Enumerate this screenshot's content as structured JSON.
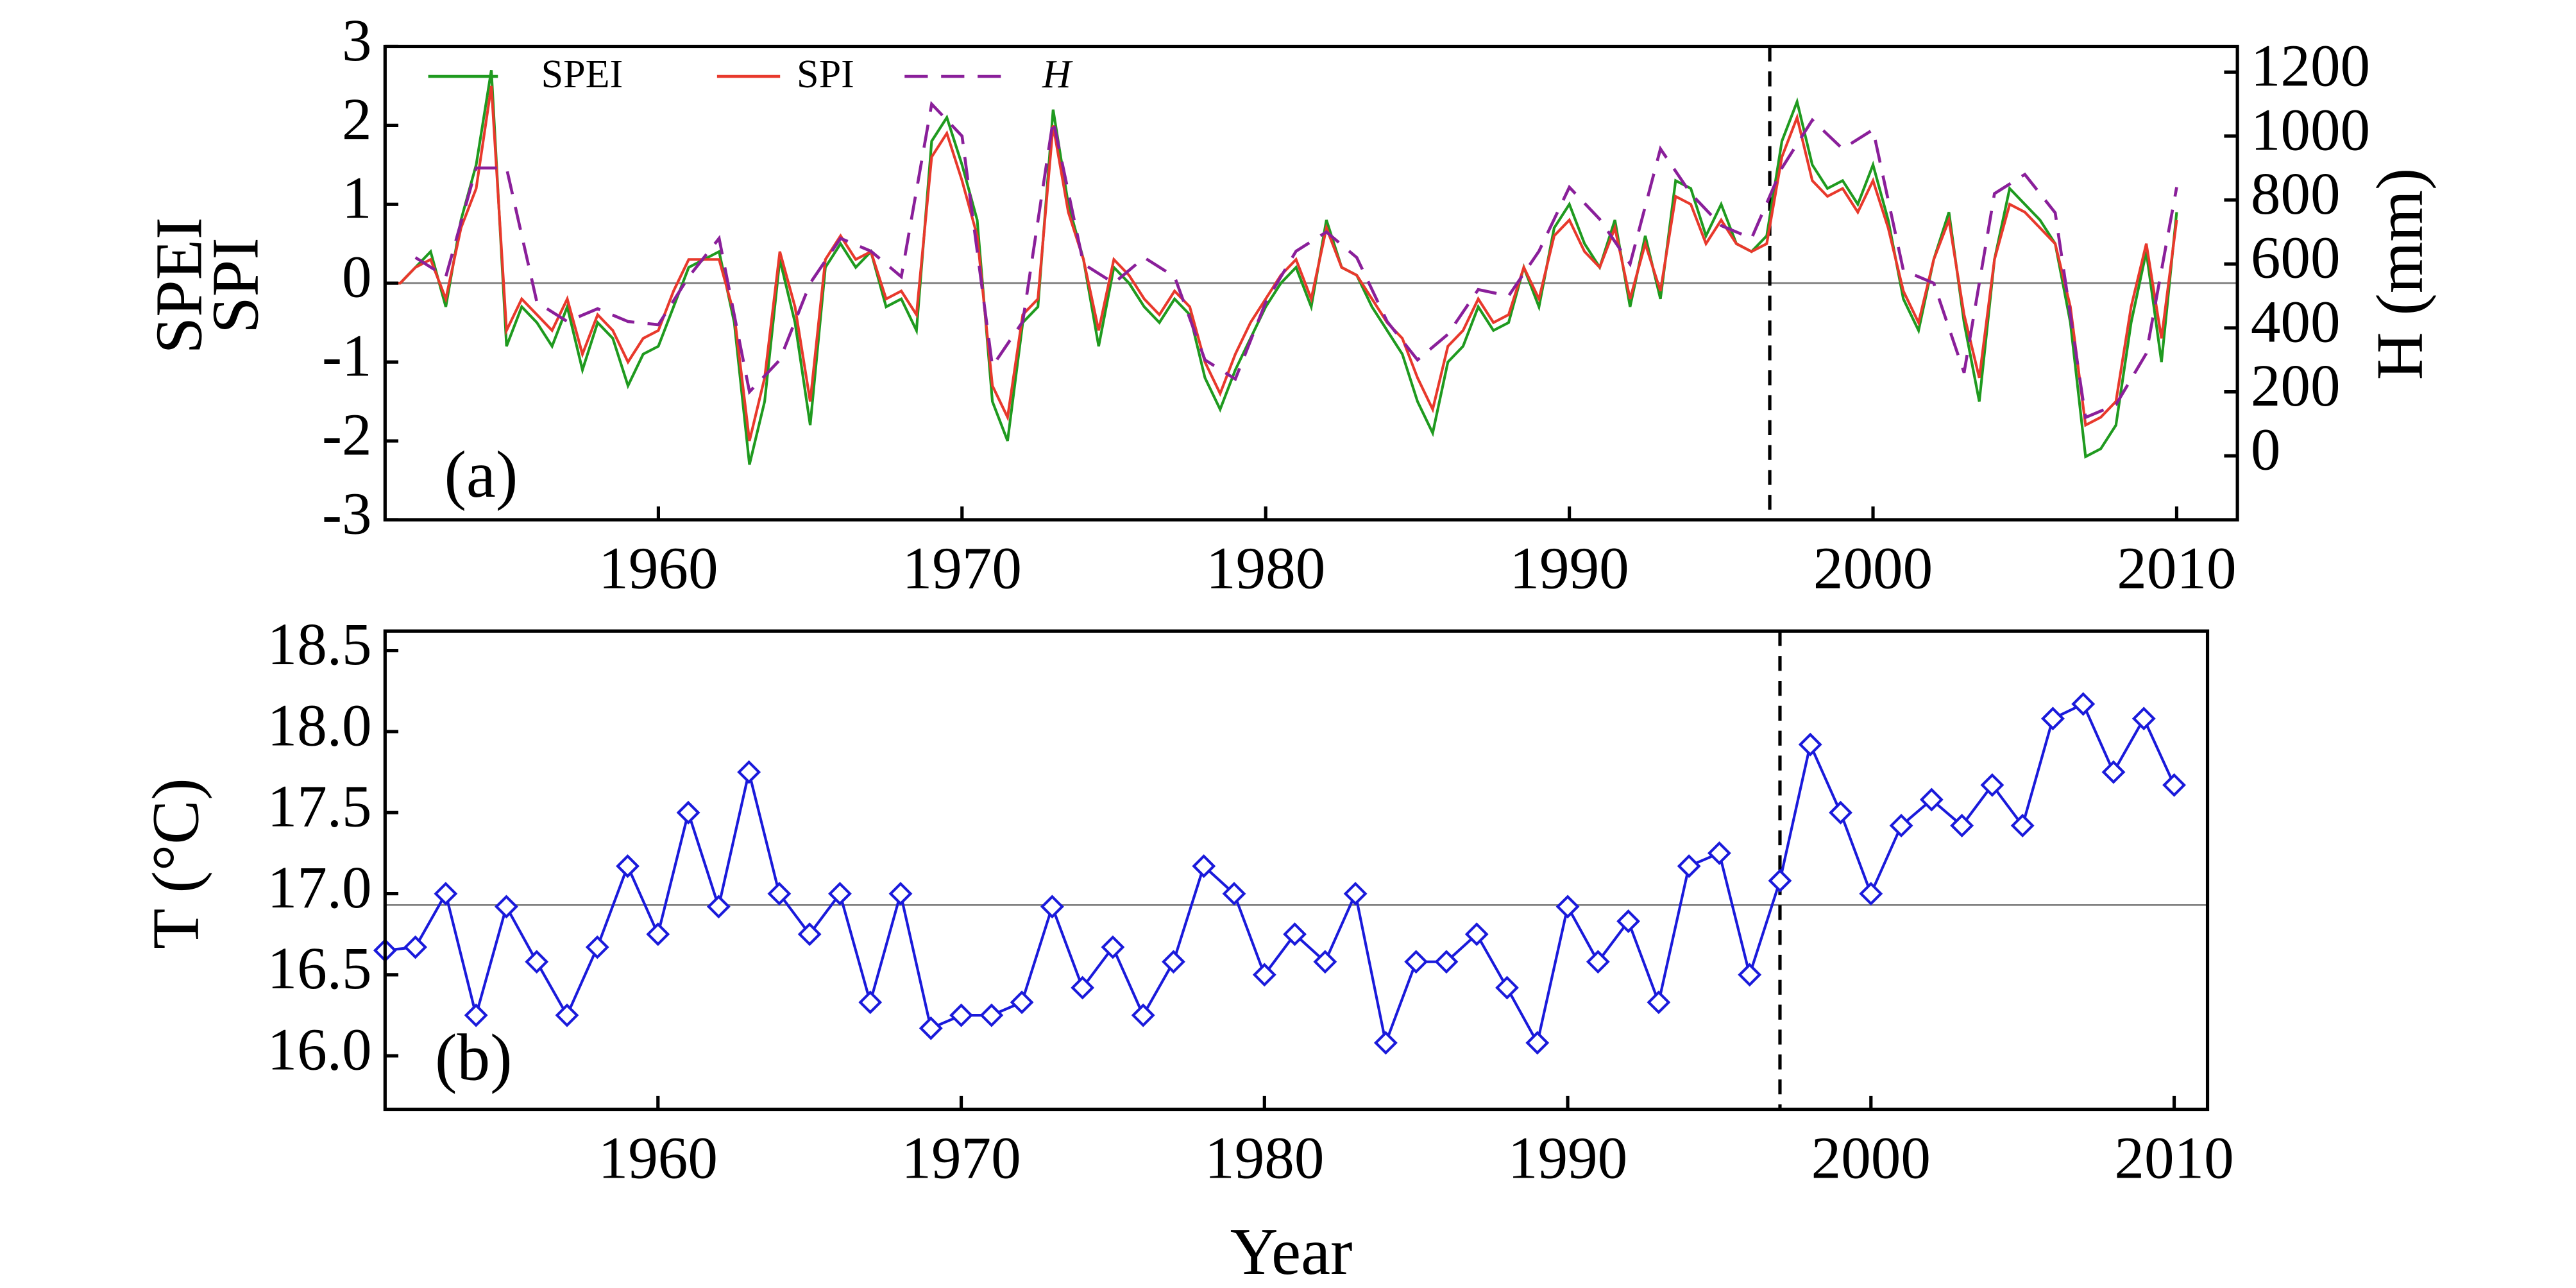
{
  "chart_data": [
    {
      "type": "line",
      "panel_label": "(a)",
      "ylabel": [
        "SPEI",
        "SPI"
      ],
      "y2label": "H (mm)",
      "xlim": [
        1951,
        2012
      ],
      "xticks": [
        1960,
        1970,
        1980,
        1990,
        2000,
        2010
      ],
      "ylim": [
        -3,
        3
      ],
      "yticks": [
        -3,
        -2,
        -1,
        0,
        1,
        2,
        3
      ],
      "y2lim": [
        -200,
        1280
      ],
      "y2ticks": [
        0,
        200,
        400,
        600,
        800,
        1000,
        1200
      ],
      "hline": 0,
      "vline": 1996.6,
      "legend": "upper left",
      "x": [
        1951,
        1951.5,
        1952,
        1952.5,
        1953,
        1953.5,
        1954,
        1954.5,
        1955,
        1955.5,
        1956,
        1956.5,
        1957,
        1957.5,
        1958,
        1958.5,
        1959,
        1959.5,
        1960,
        1960.5,
        1961,
        1961.5,
        1962,
        1962.5,
        1963,
        1963.5,
        1964,
        1964.5,
        1965,
        1965.5,
        1966,
        1966.5,
        1967,
        1967.5,
        1968,
        1968.5,
        1969,
        1969.5,
        1970,
        1970.5,
        1971,
        1971.5,
        1972,
        1972.5,
        1973,
        1973.5,
        1974,
        1974.5,
        1975,
        1975.5,
        1976,
        1976.5,
        1977,
        1977.5,
        1978,
        1978.5,
        1979,
        1979.5,
        1980,
        1980.5,
        1981,
        1981.5,
        1982,
        1982.5,
        1983,
        1983.5,
        1984,
        1984.5,
        1985,
        1985.5,
        1986,
        1986.5,
        1987,
        1987.5,
        1988,
        1988.5,
        1989,
        1989.5,
        1990,
        1990.5,
        1991,
        1991.5,
        1992,
        1992.5,
        1993,
        1993.5,
        1994,
        1994.5,
        1995,
        1995.5,
        1996,
        1996.5,
        1997,
        1997.5,
        1998,
        1998.5,
        1999,
        1999.5,
        2000,
        2000.5,
        2001,
        2001.5,
        2002,
        2002.5,
        2003,
        2003.5,
        2004,
        2004.5,
        2005,
        2005.5,
        2006,
        2006.5,
        2007,
        2007.5,
        2008,
        2008.5,
        2009,
        2009.5,
        2010
      ],
      "series": [
        {
          "name": "SPEI",
          "color": "#1f9a1f",
          "values": [
            0,
            0,
            0.2,
            0.4,
            -0.3,
            0.8,
            1.5,
            2.7,
            -0.8,
            -0.3,
            -0.5,
            -0.8,
            -0.3,
            -1.1,
            -0.5,
            -0.7,
            -1.3,
            -0.9,
            -0.8,
            -0.3,
            0.2,
            0.3,
            0.4,
            -0.5,
            -2.3,
            -1.5,
            0.3,
            -0.5,
            -1.8,
            0.2,
            0.5,
            0.2,
            0.4,
            -0.3,
            -0.2,
            -0.6,
            1.8,
            2.1,
            1.5,
            0.8,
            -1.5,
            -2.0,
            -0.5,
            -0.3,
            2.2,
            1.0,
            0.3,
            -0.8,
            0.2,
            0.0,
            -0.3,
            -0.5,
            -0.2,
            -0.4,
            -1.2,
            -1.6,
            -1.1,
            -0.7,
            -0.3,
            0.0,
            0.2,
            -0.3,
            0.8,
            0.2,
            0.1,
            -0.3,
            -0.6,
            -0.9,
            -1.5,
            -1.9,
            -1.0,
            -0.8,
            -0.3,
            -0.6,
            -0.5,
            0.2,
            -0.3,
            0.7,
            1.0,
            0.5,
            0.2,
            0.8,
            -0.3,
            0.6,
            -0.2,
            1.3,
            1.2,
            0.6,
            1.0,
            0.5,
            0.4,
            0.6,
            1.8,
            2.3,
            1.5,
            1.2,
            1.3,
            1.0,
            1.5,
            0.8,
            -0.2,
            -0.6,
            0.3,
            0.9,
            -0.5,
            -1.5,
            0.3,
            1.2,
            1.0,
            0.8,
            0.5,
            -0.5,
            -2.2,
            -2.1,
            -1.8,
            -0.5,
            0.4,
            -1.0,
            0.9
          ]
        },
        {
          "name": "SPI",
          "color": "#e8392c",
          "values": [
            0,
            0,
            0.2,
            0.3,
            -0.2,
            0.7,
            1.2,
            2.5,
            -0.6,
            -0.2,
            -0.4,
            -0.6,
            -0.2,
            -0.9,
            -0.4,
            -0.6,
            -1.0,
            -0.7,
            -0.6,
            -0.1,
            0.3,
            0.3,
            0.3,
            -0.4,
            -2.0,
            -1.2,
            0.4,
            -0.3,
            -1.5,
            0.3,
            0.6,
            0.3,
            0.4,
            -0.2,
            -0.1,
            -0.4,
            1.6,
            1.9,
            1.3,
            0.6,
            -1.3,
            -1.7,
            -0.4,
            -0.2,
            2.0,
            0.9,
            0.3,
            -0.6,
            0.3,
            0.1,
            -0.2,
            -0.4,
            -0.1,
            -0.3,
            -1.0,
            -1.4,
            -0.9,
            -0.5,
            -0.2,
            0.1,
            0.3,
            -0.2,
            0.7,
            0.2,
            0.1,
            -0.2,
            -0.5,
            -0.7,
            -1.2,
            -1.6,
            -0.8,
            -0.6,
            -0.2,
            -0.5,
            -0.4,
            0.2,
            -0.2,
            0.6,
            0.8,
            0.4,
            0.2,
            0.7,
            -0.2,
            0.5,
            -0.1,
            1.1,
            1.0,
            0.5,
            0.8,
            0.5,
            0.4,
            0.5,
            1.6,
            2.1,
            1.3,
            1.1,
            1.2,
            0.9,
            1.3,
            0.7,
            -0.1,
            -0.5,
            0.3,
            0.8,
            -0.4,
            -1.2,
            0.3,
            1.0,
            0.9,
            0.7,
            0.5,
            -0.3,
            -1.8,
            -1.7,
            -1.5,
            -0.3,
            0.5,
            -0.7,
            0.8
          ]
        },
        {
          "name": "H",
          "color": "#8a1f9a",
          "axis": "y2",
          "dash": true,
          "x": [
            1952,
            1953,
            1954,
            1955,
            1956,
            1957,
            1958,
            1959,
            1960,
            1961,
            1962,
            1963,
            1964,
            1965,
            1966,
            1967,
            1968,
            1969,
            1970,
            1971,
            1972,
            1973,
            1974,
            1975,
            1976,
            1977,
            1978,
            1979,
            1980,
            1981,
            1982,
            1983,
            1984,
            1985,
            1986,
            1987,
            1988,
            1989,
            1990,
            1991,
            1992,
            1993,
            1994,
            1995,
            1996,
            1997,
            1998,
            1999,
            2000,
            2001,
            2002,
            2003,
            2004,
            2005,
            2006,
            2007,
            2008,
            2009,
            2010
          ],
          "values": [
            620,
            560,
            900,
            900,
            480,
            420,
            460,
            420,
            410,
            560,
            680,
            200,
            300,
            540,
            680,
            640,
            560,
            1100,
            1000,
            280,
            420,
            1050,
            600,
            540,
            620,
            560,
            300,
            240,
            480,
            640,
            700,
            620,
            420,
            300,
            380,
            520,
            500,
            640,
            840,
            740,
            600,
            960,
            820,
            720,
            680,
            900,
            1050,
            960,
            1020,
            580,
            540,
            260,
            820,
            880,
            760,
            120,
            160,
            320,
            840
          ]
        }
      ]
    },
    {
      "type": "line",
      "panel_label": "(b)",
      "ylabel": "T (°C)",
      "xlabel": "Year",
      "marker": "diamond",
      "xlim": [
        1951,
        2011.1
      ],
      "xticks": [
        1960,
        1970,
        1980,
        1990,
        2000,
        2010
      ],
      "ylim": [
        15.67,
        18.62
      ],
      "yticks": [
        {
          "value": 16,
          "label": "16.0"
        },
        16.5,
        {
          "value": 17,
          "label": "17.0"
        },
        17.5,
        {
          "value": 18,
          "label": "18.0"
        },
        18.5
      ],
      "hline": 16.93,
      "vline": 1997.0,
      "x": [
        1951,
        1952,
        1953,
        1954,
        1955,
        1956,
        1957,
        1958,
        1959,
        1960,
        1961,
        1962,
        1963,
        1964,
        1965,
        1966,
        1967,
        1968,
        1969,
        1970,
        1971,
        1972,
        1973,
        1974,
        1975,
        1976,
        1977,
        1978,
        1979,
        1980,
        1981,
        1982,
        1983,
        1984,
        1985,
        1986,
        1987,
        1988,
        1989,
        1990,
        1991,
        1992,
        1993,
        1994,
        1995,
        1996,
        1997,
        1998,
        1999,
        2000,
        2001,
        2002,
        2003,
        2004,
        2005,
        2006,
        2007,
        2008,
        2009,
        2010
      ],
      "series": [
        {
          "color": "#1a1adb",
          "values": [
            16.65,
            16.67,
            17.0,
            16.25,
            16.92,
            16.58,
            16.25,
            16.67,
            17.17,
            16.75,
            17.5,
            16.92,
            17.75,
            17.0,
            16.75,
            17.0,
            16.33,
            17.0,
            16.17,
            16.25,
            16.25,
            16.33,
            16.92,
            16.42,
            16.67,
            16.25,
            16.58,
            17.17,
            17.0,
            16.5,
            16.75,
            16.58,
            17.0,
            16.08,
            16.58,
            16.58,
            16.75,
            16.42,
            16.08,
            16.92,
            16.58,
            16.83,
            16.33,
            17.17,
            17.25,
            16.5,
            17.08,
            17.92,
            17.5,
            17.0,
            17.42,
            17.58,
            17.42,
            17.67,
            17.42,
            18.08,
            18.17,
            17.75,
            18.08,
            17.67
          ]
        }
      ]
    }
  ]
}
